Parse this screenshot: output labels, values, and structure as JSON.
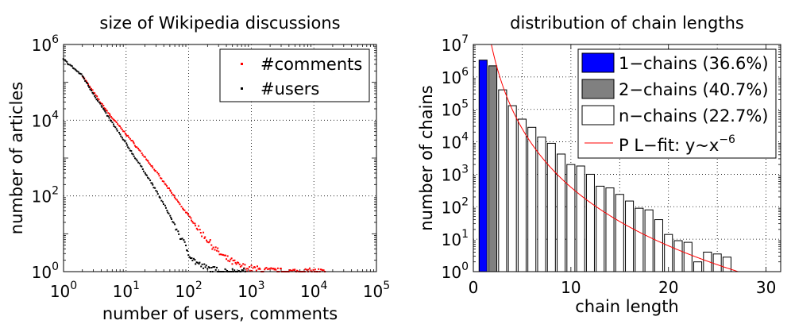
{
  "chart_data": [
    {
      "type": "scatter",
      "title": "size of Wikipedia discussions",
      "xlabel": "number of users, comments",
      "ylabel": "number of articles",
      "xscale": "log",
      "yscale": "log",
      "xlim": [
        1,
        100000
      ],
      "ylim": [
        1,
        1000000
      ],
      "x_ticks": [
        {
          "base": "10",
          "exp": "0",
          "value": 1
        },
        {
          "base": "10",
          "exp": "1",
          "value": 10
        },
        {
          "base": "10",
          "exp": "2",
          "value": 100
        },
        {
          "base": "10",
          "exp": "3",
          "value": 1000
        },
        {
          "base": "10",
          "exp": "4",
          "value": 10000
        },
        {
          "base": "10",
          "exp": "5",
          "value": 100000
        }
      ],
      "y_ticks": [
        {
          "base": "10",
          "exp": "0",
          "value": 1
        },
        {
          "base": "10",
          "exp": "2",
          "value": 100
        },
        {
          "base": "10",
          "exp": "4",
          "value": 10000
        },
        {
          "base": "10",
          "exp": "6",
          "value": 1000000
        }
      ],
      "grid": true,
      "legend_position": "top-right",
      "series": [
        {
          "name": "#comments",
          "color": "#ff0000",
          "marker": "dot",
          "points": [
            [
              2,
              150000
            ],
            [
              3,
              55000
            ],
            [
              4,
              28000
            ],
            [
              5,
              17000
            ],
            [
              6,
              11500
            ],
            [
              7,
              8500
            ],
            [
              8,
              6600
            ],
            [
              9,
              5200
            ],
            [
              10,
              4300
            ],
            [
              12,
              3000
            ],
            [
              15,
              1900
            ],
            [
              20,
              1050
            ],
            [
              25,
              650
            ],
            [
              30,
              440
            ],
            [
              40,
              230
            ],
            [
              50,
              140
            ],
            [
              60,
              92
            ],
            [
              70,
              65
            ],
            [
              80,
              48
            ],
            [
              100,
              30
            ],
            [
              120,
              20
            ],
            [
              150,
              12
            ],
            [
              200,
              7
            ],
            [
              250,
              4.5
            ],
            [
              300,
              3.2
            ],
            [
              400,
              2.2
            ],
            [
              500,
              1.8
            ],
            [
              600,
              1.5
            ],
            [
              800,
              1.3
            ],
            [
              1000,
              1.2
            ],
            [
              1500,
              1.1
            ],
            [
              2000,
              1.05
            ],
            [
              3000,
              1
            ],
            [
              5000,
              1
            ],
            [
              8000,
              1
            ],
            [
              15000,
              1
            ]
          ]
        },
        {
          "name": "#users",
          "color": "#000000",
          "marker": "dot",
          "points": [
            [
              1,
              400000
            ],
            [
              2,
              150000
            ],
            [
              3,
              50000
            ],
            [
              4,
              24000
            ],
            [
              5,
              13500
            ],
            [
              6,
              8500
            ],
            [
              7,
              5800
            ],
            [
              8,
              4100
            ],
            [
              9,
              3100
            ],
            [
              10,
              2400
            ],
            [
              12,
              1500
            ],
            [
              15,
              850
            ],
            [
              20,
              420
            ],
            [
              25,
              230
            ],
            [
              30,
              140
            ],
            [
              40,
              60
            ],
            [
              50,
              30
            ],
            [
              60,
              17
            ],
            [
              70,
              10
            ],
            [
              80,
              6.5
            ],
            [
              100,
              3.2
            ],
            [
              120,
              2
            ],
            [
              150,
              1.5
            ],
            [
              200,
              1.2
            ],
            [
              300,
              1.05
            ],
            [
              500,
              1
            ],
            [
              800,
              1
            ]
          ]
        }
      ]
    },
    {
      "type": "bar",
      "title": "distribution of chain lengths",
      "xlabel": "chain length",
      "ylabel": "number of chains",
      "yscale": "log",
      "xlim": [
        0,
        31.5
      ],
      "ylim": [
        1,
        10000000
      ],
      "x_ticks": [
        0,
        10,
        20,
        30
      ],
      "y_ticks": [
        {
          "base": "10",
          "exp": "0",
          "value": 1
        },
        {
          "base": "10",
          "exp": "1",
          "value": 10
        },
        {
          "base": "10",
          "exp": "2",
          "value": 100
        },
        {
          "base": "10",
          "exp": "3",
          "value": 1000
        },
        {
          "base": "10",
          "exp": "4",
          "value": 10000
        },
        {
          "base": "10",
          "exp": "5",
          "value": 100000
        },
        {
          "base": "10",
          "exp": "6",
          "value": 1000000
        },
        {
          "base": "10",
          "exp": "7",
          "value": 10000000
        }
      ],
      "grid": true,
      "legend_position": "top-right",
      "series": [
        {
          "name": "1−chains (36.6%)",
          "color": "#0000ff",
          "x": [
            1
          ],
          "values": [
            3300000
          ]
        },
        {
          "name": "2−chains (40.7%)",
          "color": "#808080",
          "x": [
            2
          ],
          "values": [
            2200000
          ]
        },
        {
          "name": "n−chains (22.7%)",
          "color": "#ffffff",
          "x": [
            3,
            4,
            5,
            6,
            7,
            8,
            9,
            10,
            11,
            12,
            13,
            14,
            15,
            16,
            17,
            18,
            19,
            20,
            21,
            22,
            23,
            24,
            25,
            26,
            27,
            28,
            29,
            30
          ],
          "values": [
            400000,
            130000,
            50000,
            28000,
            14000,
            9000,
            4200,
            2000,
            1800,
            1000,
            430,
            380,
            240,
            150,
            90,
            80,
            40,
            14,
            9,
            8,
            2,
            4,
            3.5,
            2.8,
            1,
            1,
            1,
            1
          ]
        }
      ],
      "fit": {
        "name": "P L−fit: y~x",
        "exponent_label": "−6",
        "color": "#ff0000",
        "formula": "y = a * x^-6",
        "a": 400000000
      }
    }
  ]
}
